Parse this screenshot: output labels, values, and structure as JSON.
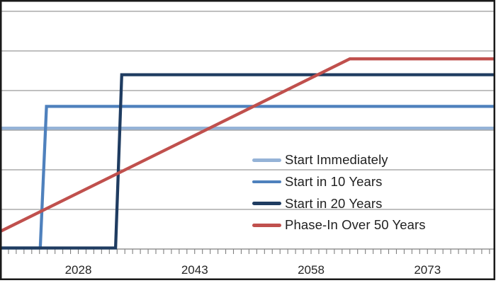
{
  "chart_data": {
    "type": "line",
    "title": "",
    "xlabel": "",
    "ylabel": "",
    "x_axis": {
      "range_years": [
        2018,
        2082
      ],
      "minor_tick_every_years": 1,
      "labeled_ticks": [
        {
          "year": 2028,
          "label": "2028"
        },
        {
          "year": 2043,
          "label": "2043"
        },
        {
          "year": 2058,
          "label": "2058"
        },
        {
          "year": 2073,
          "label": "2073"
        }
      ]
    },
    "y_axis": {
      "labels_visible": false,
      "range_units": [
        0,
        6.25
      ],
      "gridline_values": [
        1,
        2,
        3,
        4,
        5,
        6
      ],
      "note": "No y-axis tick labels shown; values are in gridline units estimated from the plot"
    },
    "grid": "horizontal-on",
    "legend_position": "center-right-overlay",
    "legend_border": false,
    "series": [
      {
        "name": "Start Immediately",
        "color": "#95b3d7",
        "points": [
          [
            2018,
            3.05
          ],
          [
            2082,
            3.05
          ]
        ]
      },
      {
        "name": "Start in 10 Years",
        "color": "#4f81bd",
        "points": [
          [
            2018,
            0
          ],
          [
            2023.1,
            0
          ],
          [
            2023.9,
            3.6
          ],
          [
            2082,
            3.6
          ]
        ]
      },
      {
        "name": "Start in 20 Years",
        "color": "#1f3c61",
        "points": [
          [
            2018,
            0
          ],
          [
            2032.8,
            0
          ],
          [
            2033.6,
            4.4
          ],
          [
            2082,
            4.4
          ]
        ]
      },
      {
        "name": "Phase-In Over 50 Years",
        "color": "#c0504d",
        "points": [
          [
            2018,
            0.45
          ],
          [
            2063,
            4.8
          ],
          [
            2082,
            4.8
          ]
        ]
      }
    ]
  },
  "style_colors": {
    "plot_background": "#ffffff",
    "frame_border": "#1a1a1a",
    "gridline": "#9a9a9a",
    "axis_line": "#7f7f7f",
    "tick_mark": "#7f7f7f",
    "axis_label_text": "#262626",
    "legend_text": "#1f1f1f"
  }
}
